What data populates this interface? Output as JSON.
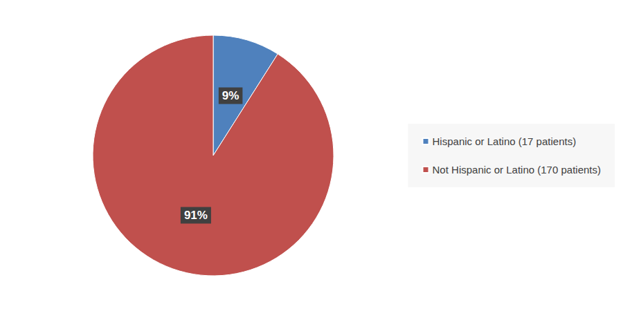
{
  "chart_data": {
    "type": "pie",
    "categories": [
      "Hispanic or Latino (17 patients)",
      "Not Hispanic or Latino (170 patients)"
    ],
    "values": [
      9,
      91
    ],
    "value_labels": [
      "9%",
      "91%"
    ],
    "colors": [
      "#4f81bd",
      "#c0504d"
    ],
    "data_labels": true,
    "legend": "right"
  }
}
